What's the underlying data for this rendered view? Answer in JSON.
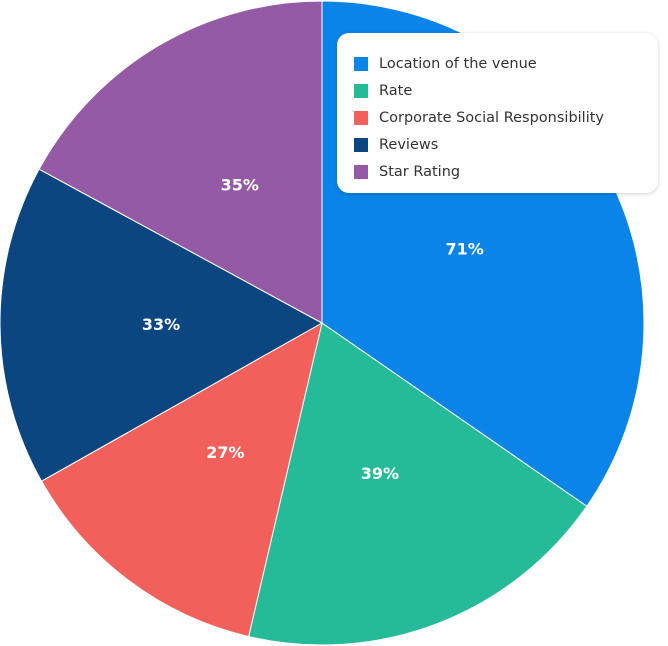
{
  "chart_data": {
    "type": "pie",
    "categories": [
      "Location of the venue",
      "Rate",
      "Corporate Social Responsibility",
      "Reviews",
      "Star Rating"
    ],
    "values": [
      71,
      39,
      27,
      33,
      35
    ],
    "data_labels": [
      "71%",
      "39%",
      "27%",
      "33%",
      "35%"
    ],
    "colors": [
      "#0a84e8",
      "#26bb98",
      "#f2605c",
      "#0b4680",
      "#955aa6"
    ],
    "start_angle_deg": 0,
    "direction": "clockwise",
    "legend_position": "top-right"
  }
}
